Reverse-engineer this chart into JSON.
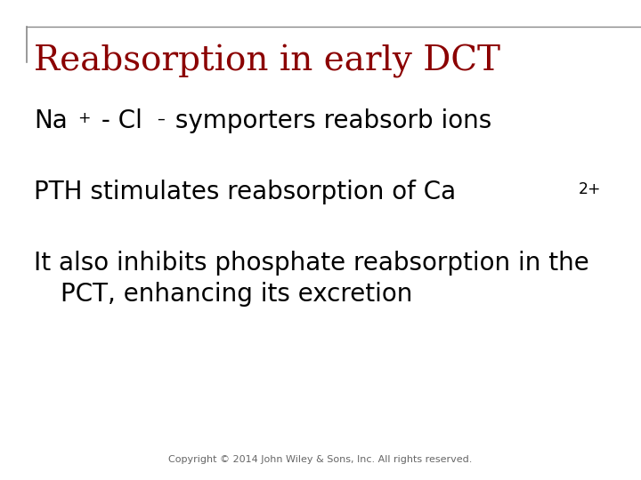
{
  "title": "Reabsorption in early DCT",
  "title_color": "#8B0000",
  "title_fontsize": 28,
  "background_color": "#FFFFFF",
  "border_color": "#888888",
  "bullet_fontsize": 20,
  "copyright": "Copyright © 2014 John Wiley & Sons, Inc. All rights reserved.",
  "copyright_fontsize": 8,
  "copyright_color": "#666666",
  "bullet3_line1": "It also inhibits phosphate reabsorption in the",
  "bullet3_line2": "PCT, enhancing its excretion"
}
